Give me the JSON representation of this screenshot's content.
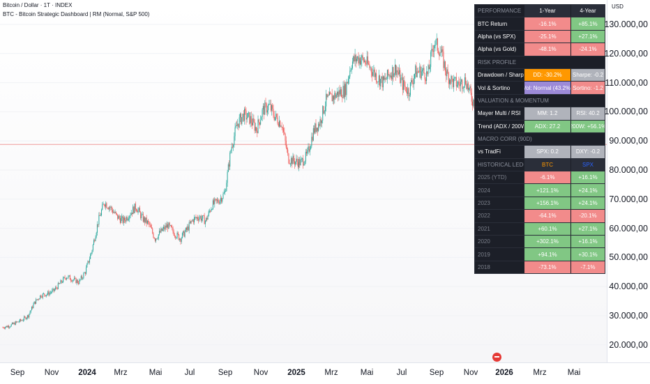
{
  "header": {
    "symbol": "Bitcoin / Dollar · 1T · INDEX",
    "indicator": "BTC - Bitcoin Strategic Dashboard | RM  (Normal, S&P 500)"
  },
  "currency": "USD",
  "price_axis": [
    "130.000,00",
    "120.000,00",
    "110.000,00",
    "100.000,00",
    "90.000,00",
    "80.000,00",
    "70.000,00",
    "60.000,00",
    "50.000,00",
    "40.000,00",
    "30.000,00",
    "20.000,00"
  ],
  "time_axis": [
    {
      "label": "Sep",
      "bold": false
    },
    {
      "label": "Nov",
      "bold": false
    },
    {
      "label": "2024",
      "bold": true
    },
    {
      "label": "Mrz",
      "bold": false
    },
    {
      "label": "Mai",
      "bold": false
    },
    {
      "label": "Jul",
      "bold": false
    },
    {
      "label": "Sep",
      "bold": false
    },
    {
      "label": "Nov",
      "bold": false
    },
    {
      "label": "2025",
      "bold": true
    },
    {
      "label": "Mrz",
      "bold": false
    },
    {
      "label": "Mai",
      "bold": false
    },
    {
      "label": "Jul",
      "bold": false
    },
    {
      "label": "Sep",
      "bold": false
    },
    {
      "label": "Nov",
      "bold": false
    },
    {
      "label": "2026",
      "bold": true
    },
    {
      "label": "Mrz",
      "bold": false
    },
    {
      "label": "Mai",
      "bold": false
    }
  ],
  "colors": {
    "up": "#26a69a",
    "down": "#ef5350",
    "red_cell": "#f28b8b",
    "green_cell": "#81c784"
  },
  "chart_data": {
    "type": "candlestick",
    "series": [
      {
        "name": "Bitcoin / Dollar",
        "values": [
          26000,
          26500,
          27500,
          28500,
          30000,
          34500,
          37000,
          37500,
          38500,
          41000,
          43500,
          42500,
          41500,
          45000,
          52000,
          62000,
          69000,
          67000,
          64000,
          62500,
          65000,
          67500,
          63500,
          61500,
          56500,
          59000,
          61000,
          58500,
          56500,
          59500,
          63000,
          64000,
          62500,
          68000,
          69500,
          72000,
          87500,
          96000,
          99000,
          97500,
          94000,
          100500,
          102000,
          98000,
          96000,
          84000,
          83000,
          82500,
          85000,
          93500,
          96500,
          104000,
          105000,
          106500,
          107500,
          117000,
          118500,
          117500,
          115000,
          112000,
          110000,
          113000,
          115000,
          109500,
          107000,
          113500,
          114000,
          112500,
          124000,
          121000,
          113000,
          110000,
          109500,
          111000,
          104000,
          103000
        ]
      }
    ],
    "ylim": [
      20000,
      135000
    ]
  },
  "dashboard": {
    "performance": {
      "section": "PERFORMANCE",
      "col1": "1-Year",
      "col2": "4-Year"
    },
    "btc_return": {
      "label": "BTC Return",
      "v1": "-16.1%",
      "v2": "+85.1%"
    },
    "alpha_spx": {
      "label": "Alpha (vs SPX)",
      "v1": "-25.1%",
      "v2": "+27.1%"
    },
    "alpha_gold": {
      "label": "Alpha (vs Gold)",
      "v1": "-48.1%",
      "v2": "-24.1%"
    },
    "risk_profile": "RISK PROFILE",
    "drawdown": {
      "label": "Drawdown / Sharpe",
      "v1": "DD: -30.2%",
      "v2": "Sharpe: -0.2"
    },
    "vol": {
      "label": "Vol & Sortino",
      "v1": "Vol: Normal (43.2%)",
      "v2": "Sortino: -1.2"
    },
    "valuation": "VALUATION & MOMENTUM",
    "mayer": {
      "label": "Mayer Multi / RSI",
      "v1": "MM: 1.2",
      "v2": "RSI: 40.2"
    },
    "trend": {
      "label": "Trend (ADX / 200W)",
      "v1": "ADX: 27.2",
      "v2": "200W: +56.1%"
    },
    "macro": "MACRO CORR (90D)",
    "tradfi": {
      "label": "vs TradFi",
      "v1": "SPX: 0.2",
      "v2": "DXY: -0.2"
    },
    "ledger": {
      "section": "HISTORICAL LEDGER",
      "col1": "BTC",
      "col2": "SPX"
    },
    "years": [
      {
        "year": "2025 (YTD)",
        "btc": "-6.1%",
        "spx": "+16.1%"
      },
      {
        "year": "2024",
        "btc": "+121.1%",
        "spx": "+24.1%"
      },
      {
        "year": "2023",
        "btc": "+156.1%",
        "spx": "+24.1%"
      },
      {
        "year": "2022",
        "btc": "-64.1%",
        "spx": "-20.1%"
      },
      {
        "year": "2021",
        "btc": "+60.1%",
        "spx": "+27.1%"
      },
      {
        "year": "2020",
        "btc": "+302.1%",
        "spx": "+16.1%"
      },
      {
        "year": "2019",
        "btc": "+94.1%",
        "spx": "+30.1%"
      },
      {
        "year": "2018",
        "btc": "-73.1%",
        "spx": "-7.1%"
      }
    ]
  }
}
